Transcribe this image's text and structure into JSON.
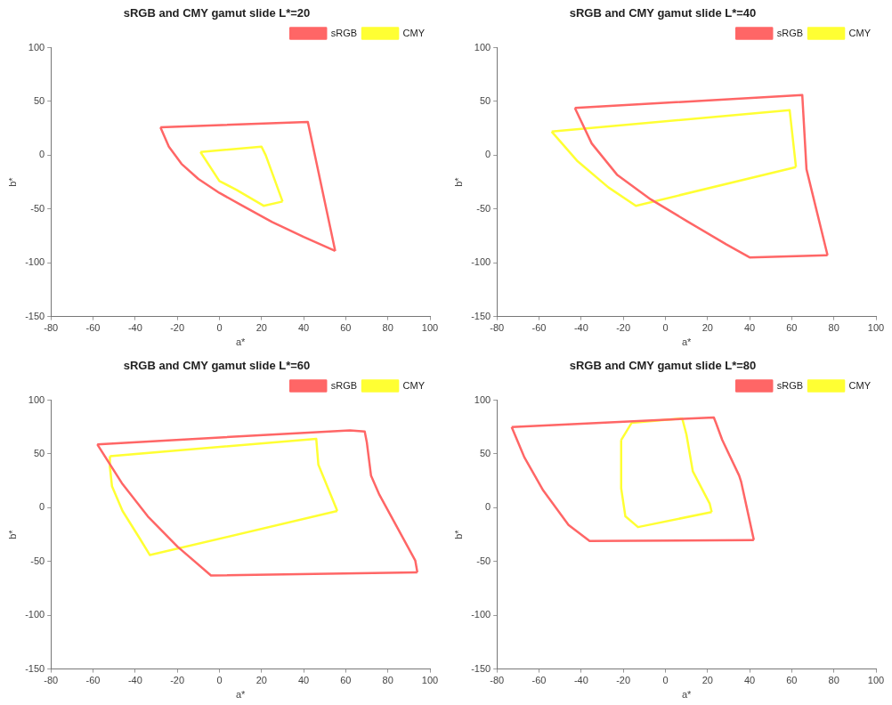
{
  "chart_data": [
    {
      "type": "line",
      "title": "sRGB and CMY gamut slide L*=20",
      "xlabel": "a*",
      "ylabel": "b*",
      "xlim": [
        -80,
        100
      ],
      "xticks": [
        -80,
        -60,
        -40,
        -20,
        0,
        20,
        40,
        60,
        80,
        100
      ],
      "ylim": [
        -150,
        100
      ],
      "yticks": [
        -150,
        -100,
        -50,
        0,
        50,
        100
      ],
      "grid": false,
      "legend": "top right",
      "marker": "none",
      "series": [
        {
          "name": "sRGB",
          "color": "#ff6666",
          "x": [
            -28,
            42,
            55
          ],
          "values": [
            26,
            31,
            -89
          ]
        },
        {
          "color": "#ff6666",
          "x": [
            55,
            40,
            25,
            10,
            0,
            -10,
            -18,
            -24,
            -28
          ],
          "values": [
            -89,
            -76,
            -62,
            -46,
            -35,
            -22,
            -8,
            8,
            26
          ]
        },
        {
          "name": "CMY",
          "color": "#ffff33",
          "x": [
            -9,
            20,
            22,
            30
          ],
          "values": [
            3,
            8,
            0,
            -43
          ]
        },
        {
          "color": "#ffff33",
          "x": [
            30,
            21,
            8,
            0,
            -9
          ],
          "values": [
            -43,
            -47,
            -32,
            -24,
            3
          ]
        }
      ]
    },
    {
      "type": "line",
      "title": "sRGB and CMY gamut slide L*=40",
      "xlabel": "a*",
      "ylabel": "b*",
      "xlim": [
        -80,
        100
      ],
      "xticks": [
        -80,
        -60,
        -40,
        -20,
        0,
        20,
        40,
        60,
        80,
        100
      ],
      "ylim": [
        -150,
        100
      ],
      "yticks": [
        -150,
        -100,
        -50,
        0,
        50,
        100
      ],
      "grid": false,
      "legend": "top right",
      "marker": "none",
      "series": [
        {
          "name": "sRGB",
          "color": "#ff6666",
          "x": [
            -43,
            65,
            67,
            77
          ],
          "values": [
            44,
            56,
            -13,
            -93
          ]
        },
        {
          "color": "#ff6666",
          "x": [
            77,
            40,
            29,
            10,
            -7,
            -23,
            -35,
            -43
          ],
          "values": [
            -93,
            -95,
            -83,
            -61,
            -41,
            -18,
            11,
            44
          ]
        },
        {
          "name": "CMY",
          "color": "#ffff33",
          "x": [
            -54,
            59,
            62
          ],
          "values": [
            22,
            42,
            -11
          ]
        },
        {
          "color": "#ffff33",
          "x": [
            62,
            -14,
            -27,
            -42,
            -54
          ],
          "values": [
            -11,
            -47,
            -30,
            -5,
            22
          ]
        }
      ]
    },
    {
      "type": "line",
      "title": "sRGB and CMY gamut slide L*=60",
      "xlabel": "a*",
      "ylabel": "b*",
      "xlim": [
        -80,
        100
      ],
      "xticks": [
        -80,
        -60,
        -40,
        -20,
        0,
        20,
        40,
        60,
        80,
        100
      ],
      "ylim": [
        -150,
        100
      ],
      "yticks": [
        -150,
        -100,
        -50,
        0,
        50,
        100
      ],
      "grid": false,
      "legend": "top right",
      "marker": "none",
      "series": [
        {
          "name": "sRGB",
          "color": "#ff6666",
          "x": [
            -58,
            62,
            69,
            70,
            72,
            76,
            93,
            94
          ],
          "values": [
            59,
            72,
            71,
            61,
            30,
            12,
            -49,
            -60
          ]
        },
        {
          "color": "#ff6666",
          "x": [
            94,
            -4,
            -20,
            -34,
            -46,
            -58
          ],
          "values": [
            -60,
            -63,
            -36,
            -8,
            22,
            59
          ]
        },
        {
          "name": "CMY",
          "color": "#ffff33",
          "x": [
            -52,
            46,
            47,
            56
          ],
          "values": [
            48,
            64,
            40,
            -3
          ]
        },
        {
          "color": "#ffff33",
          "x": [
            56,
            -33,
            -38,
            -46,
            -51,
            -52,
            -52
          ],
          "values": [
            -3,
            -44,
            -28,
            -3,
            20,
            38,
            48
          ]
        }
      ]
    },
    {
      "type": "line",
      "title": "sRGB and CMY gamut slide L*=80",
      "xlabel": "a*",
      "ylabel": "b*",
      "xlim": [
        -80,
        100
      ],
      "xticks": [
        -80,
        -60,
        -40,
        -20,
        0,
        20,
        40,
        60,
        80,
        100
      ],
      "ylim": [
        -150,
        100
      ],
      "yticks": [
        -150,
        -100,
        -50,
        0,
        50,
        100
      ],
      "grid": false,
      "legend": "top right",
      "marker": "none",
      "series": [
        {
          "name": "sRGB",
          "color": "#ff6666",
          "x": [
            -73,
            23,
            24,
            27,
            35,
            36,
            42
          ],
          "values": [
            75,
            84,
            79,
            63,
            30,
            24,
            -30
          ]
        },
        {
          "color": "#ff6666",
          "x": [
            42,
            -36,
            -46,
            -58,
            -67,
            -73
          ],
          "values": [
            -30,
            -31,
            -16,
            16,
            47,
            75
          ]
        },
        {
          "name": "CMY",
          "color": "#ffff33",
          "x": [
            -21,
            -16,
            8,
            10,
            13,
            21,
            22
          ],
          "values": [
            63,
            79,
            83,
            68,
            34,
            4,
            -4
          ]
        },
        {
          "color": "#ffff33",
          "x": [
            22,
            -13,
            -19,
            -21,
            -21
          ],
          "values": [
            -4,
            -18,
            -8,
            18,
            63
          ]
        }
      ]
    }
  ]
}
